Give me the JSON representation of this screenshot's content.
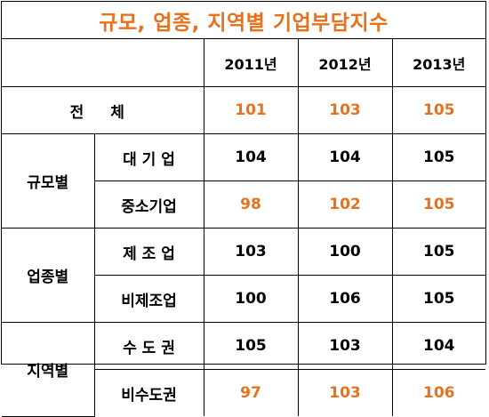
{
  "title": "규모, 업종, 지역별 기업부담지수",
  "years": [
    "2011년",
    "2012년",
    "2013년"
  ],
  "colors": {
    "highlight": "#e8711c",
    "normal": "#000000"
  },
  "total": {
    "label": "전  체",
    "values": [
      "101",
      "103",
      "105"
    ],
    "highlight": [
      true,
      true,
      true
    ]
  },
  "groups": [
    {
      "label": "규모별",
      "rows": [
        {
          "label": "대 기 업",
          "values": [
            "104",
            "104",
            "105"
          ],
          "highlight": [
            false,
            false,
            false
          ]
        },
        {
          "label": "중소기업",
          "values": [
            "98",
            "102",
            "105"
          ],
          "highlight": [
            true,
            true,
            true
          ]
        }
      ]
    },
    {
      "label": "업종별",
      "rows": [
        {
          "label": "제 조 업",
          "values": [
            "103",
            "100",
            "105"
          ],
          "highlight": [
            false,
            false,
            false
          ]
        },
        {
          "label": "비제조업",
          "values": [
            "100",
            "106",
            "105"
          ],
          "highlight": [
            false,
            false,
            false
          ]
        }
      ]
    },
    {
      "label": "지역별",
      "rows": [
        {
          "label": "수 도 권",
          "values": [
            "105",
            "103",
            "104"
          ],
          "highlight": [
            false,
            false,
            false
          ]
        },
        {
          "label": "비수도권",
          "values": [
            "97",
            "103",
            "106"
          ],
          "highlight": [
            true,
            true,
            true
          ]
        }
      ]
    }
  ]
}
